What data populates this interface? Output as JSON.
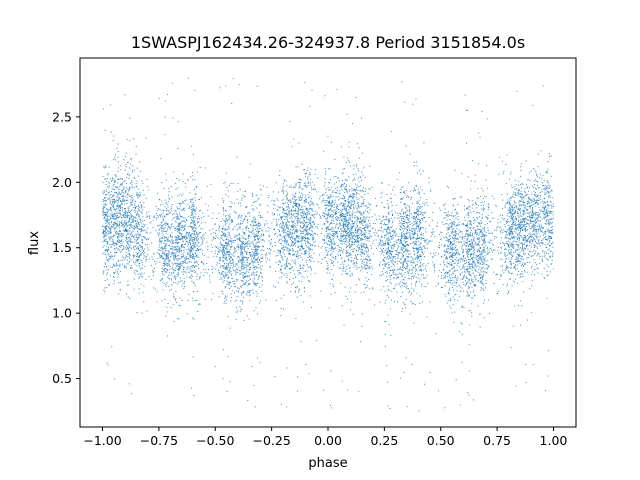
{
  "chart_data": {
    "type": "scatter",
    "title": "1SWASPJ162434.26-324937.8 Period 3151854.0s",
    "xlabel": "phase",
    "ylabel": "flux",
    "xlim": [
      -1.1,
      1.1
    ],
    "ylim": [
      0.13,
      2.95
    ],
    "x_ticks": [
      -1.0,
      -0.75,
      -0.5,
      -0.25,
      0.0,
      0.25,
      0.5,
      0.75,
      1.0
    ],
    "x_tick_labels": [
      "−1.00",
      "−0.75",
      "−0.50",
      "−0.25",
      "0.00",
      "0.25",
      "0.50",
      "0.75",
      "1.00"
    ],
    "y_ticks": [
      0.5,
      1.0,
      1.5,
      2.0,
      2.5
    ],
    "y_tick_labels": [
      "0.5",
      "1.0",
      "1.5",
      "2.0",
      "2.5"
    ],
    "grid": false,
    "legend": "none",
    "colors": {
      "points": "#1f77b4",
      "axes": "#000000",
      "background": "#ffffff"
    },
    "series": [
      {
        "x_range": [
          -1.0,
          1.0
        ],
        "point_count_approx": 9000,
        "phase_clumps": [
          -0.99,
          -0.94,
          -0.89,
          -0.84,
          -0.72,
          -0.66,
          -0.6,
          -0.45,
          -0.38,
          -0.32,
          -0.19,
          -0.14,
          -0.09,
          0.01,
          0.07,
          0.11,
          0.16,
          0.27,
          0.34,
          0.4,
          0.55,
          0.62,
          0.68,
          0.81,
          0.86,
          0.91,
          0.97
        ],
        "envelope": [
          {
            "phase": -1.0,
            "flux": 1.68
          },
          {
            "phase": -0.9,
            "flux": 1.72
          },
          {
            "phase": -0.8,
            "flux": 1.55
          },
          {
            "phase": -0.7,
            "flux": 1.5
          },
          {
            "phase": -0.6,
            "flux": 1.58
          },
          {
            "phase": -0.5,
            "flux": 1.48
          },
          {
            "phase": -0.4,
            "flux": 1.45
          },
          {
            "phase": -0.3,
            "flux": 1.52
          },
          {
            "phase": -0.2,
            "flux": 1.62
          },
          {
            "phase": -0.1,
            "flux": 1.68
          },
          {
            "phase": 0.0,
            "flux": 1.7
          },
          {
            "phase": 0.1,
            "flux": 1.68
          },
          {
            "phase": 0.2,
            "flux": 1.55
          },
          {
            "phase": 0.3,
            "flux": 1.5
          },
          {
            "phase": 0.4,
            "flux": 1.58
          },
          {
            "phase": 0.5,
            "flux": 1.48
          },
          {
            "phase": 0.6,
            "flux": 1.45
          },
          {
            "phase": 0.7,
            "flux": 1.52
          },
          {
            "phase": 0.8,
            "flux": 1.62
          },
          {
            "phase": 0.9,
            "flux": 1.68
          },
          {
            "phase": 1.0,
            "flux": 1.7
          }
        ],
        "spread_sigma": 0.2,
        "outlier_range": [
          0.25,
          2.8
        ]
      }
    ]
  }
}
